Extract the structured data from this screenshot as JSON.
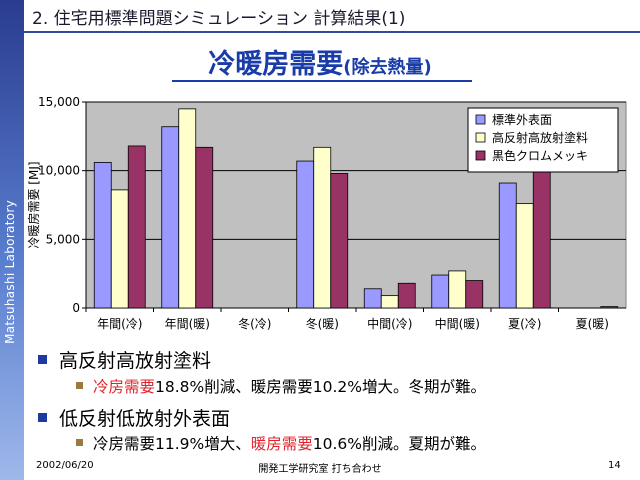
{
  "sidebar": {
    "text": "Matsuhashi Laboratory"
  },
  "header": {
    "title": "2. 住宅用標準問題シミュレーション 計算結果(1)"
  },
  "main_title": {
    "big": "冷暖房需要",
    "small": "(除去熱量)"
  },
  "chart_data": {
    "type": "bar",
    "ylabel": "冷暖房需要 [MJ]",
    "ylim": [
      0,
      15000
    ],
    "yticks": [
      0,
      5000,
      10000,
      15000
    ],
    "ytick_labels": [
      "0",
      "5,000",
      "10,000",
      "15,000"
    ],
    "grid": true,
    "legend_position": "top-right",
    "categories": [
      "年間(冷)",
      "年間(暖)",
      "冬(冷)",
      "冬(暖)",
      "中間(冷)",
      "中間(暖)",
      "夏(冷)",
      "夏(暖)"
    ],
    "series": [
      {
        "name": "標準外表面",
        "color": "#9999ff",
        "values": [
          10600,
          13200,
          0,
          10700,
          1400,
          2400,
          9100,
          0
        ]
      },
      {
        "name": "高反射高放射塗料",
        "color": "#ffffcc",
        "values": [
          8600,
          14500,
          0,
          11700,
          900,
          2700,
          7600,
          0
        ]
      },
      {
        "name": "黒色クロムメッキ",
        "color": "#993366",
        "values": [
          11800,
          11700,
          0,
          9800,
          1800,
          2000,
          9900,
          100
        ]
      }
    ]
  },
  "bullets": [
    {
      "title": "高反射高放射塗料",
      "detail": {
        "part1": "冷房需要",
        "part2": "18.8%削減、暖房需要10.2%増大。冬期が難。"
      }
    },
    {
      "title": "低反射低放射外表面",
      "detail": {
        "part1": "冷房需要11.9%増大、",
        "part2": "暖房需要",
        "part3": "10.6%削減。夏期が難。"
      }
    }
  ],
  "footer": {
    "date": "2002/06/20",
    "center": "開発工学研究室 打ち合わせ",
    "page": "14"
  }
}
